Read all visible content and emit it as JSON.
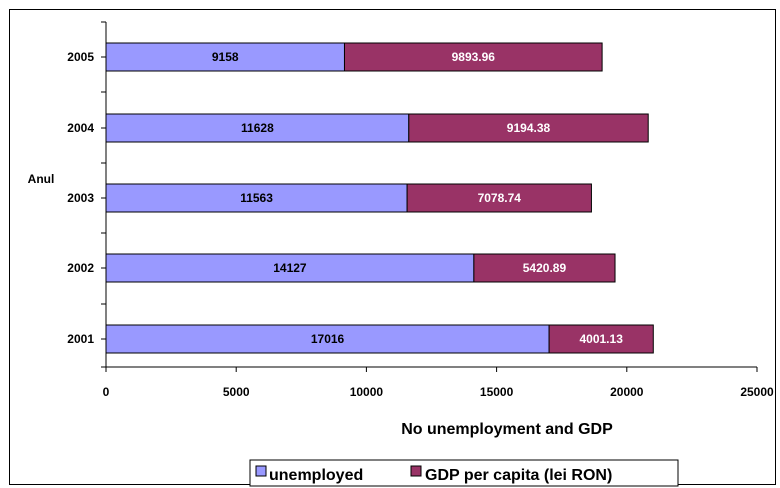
{
  "chart_data": {
    "type": "bar",
    "orientation": "horizontal",
    "stacked": true,
    "title": "",
    "xlabel": "No unemployment and GDP",
    "ylabel": "Anul",
    "categories": [
      "2001",
      "2002",
      "2003",
      "2004",
      "2005"
    ],
    "series": [
      {
        "name": "unemployed",
        "values": [
          17016,
          14127,
          11563,
          11628,
          9158
        ],
        "color": "#9999ff"
      },
      {
        "name": "GDP per capita (lei RON)",
        "values": [
          4001.13,
          5420.89,
          7078.74,
          9194.38,
          9893.96
        ],
        "color": "#993366"
      }
    ],
    "data_labels": [
      [
        "17016",
        "14127",
        "11563",
        "11628",
        "9158"
      ],
      [
        "4001.13",
        "5420.89",
        "7078.74",
        "9194.38",
        "9893.96"
      ]
    ],
    "xlim": [
      0,
      25000
    ],
    "x_ticks": [
      "0",
      "5000",
      "10000",
      "15000",
      "20000",
      "25000"
    ],
    "grid": false,
    "legend_position": "bottom"
  }
}
